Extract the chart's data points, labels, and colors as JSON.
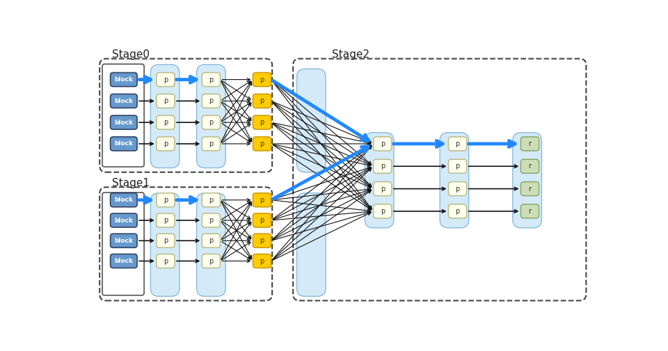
{
  "stage0_label": "Stage0",
  "stage1_label": "Stage1",
  "stage2_label": "Stage2",
  "block_color": "#6699cc",
  "block_text_color": "#ffffff",
  "p_cream_color": "#ffffee",
  "p_cream_border": "#bbbb88",
  "p_orange_color": "#ffcc00",
  "p_orange_border": "#cc9900",
  "p_green_color": "#ccddb8",
  "p_green_border": "#88aa66",
  "group_bg_color": "#d4eaf8",
  "group_bg_border": "#88bbdd",
  "dashed_border_color": "#444444",
  "arrow_blue_color": "#2288ff",
  "arrow_black_color": "#111111",
  "font_size": 7,
  "stage_label_fontsize": 11
}
